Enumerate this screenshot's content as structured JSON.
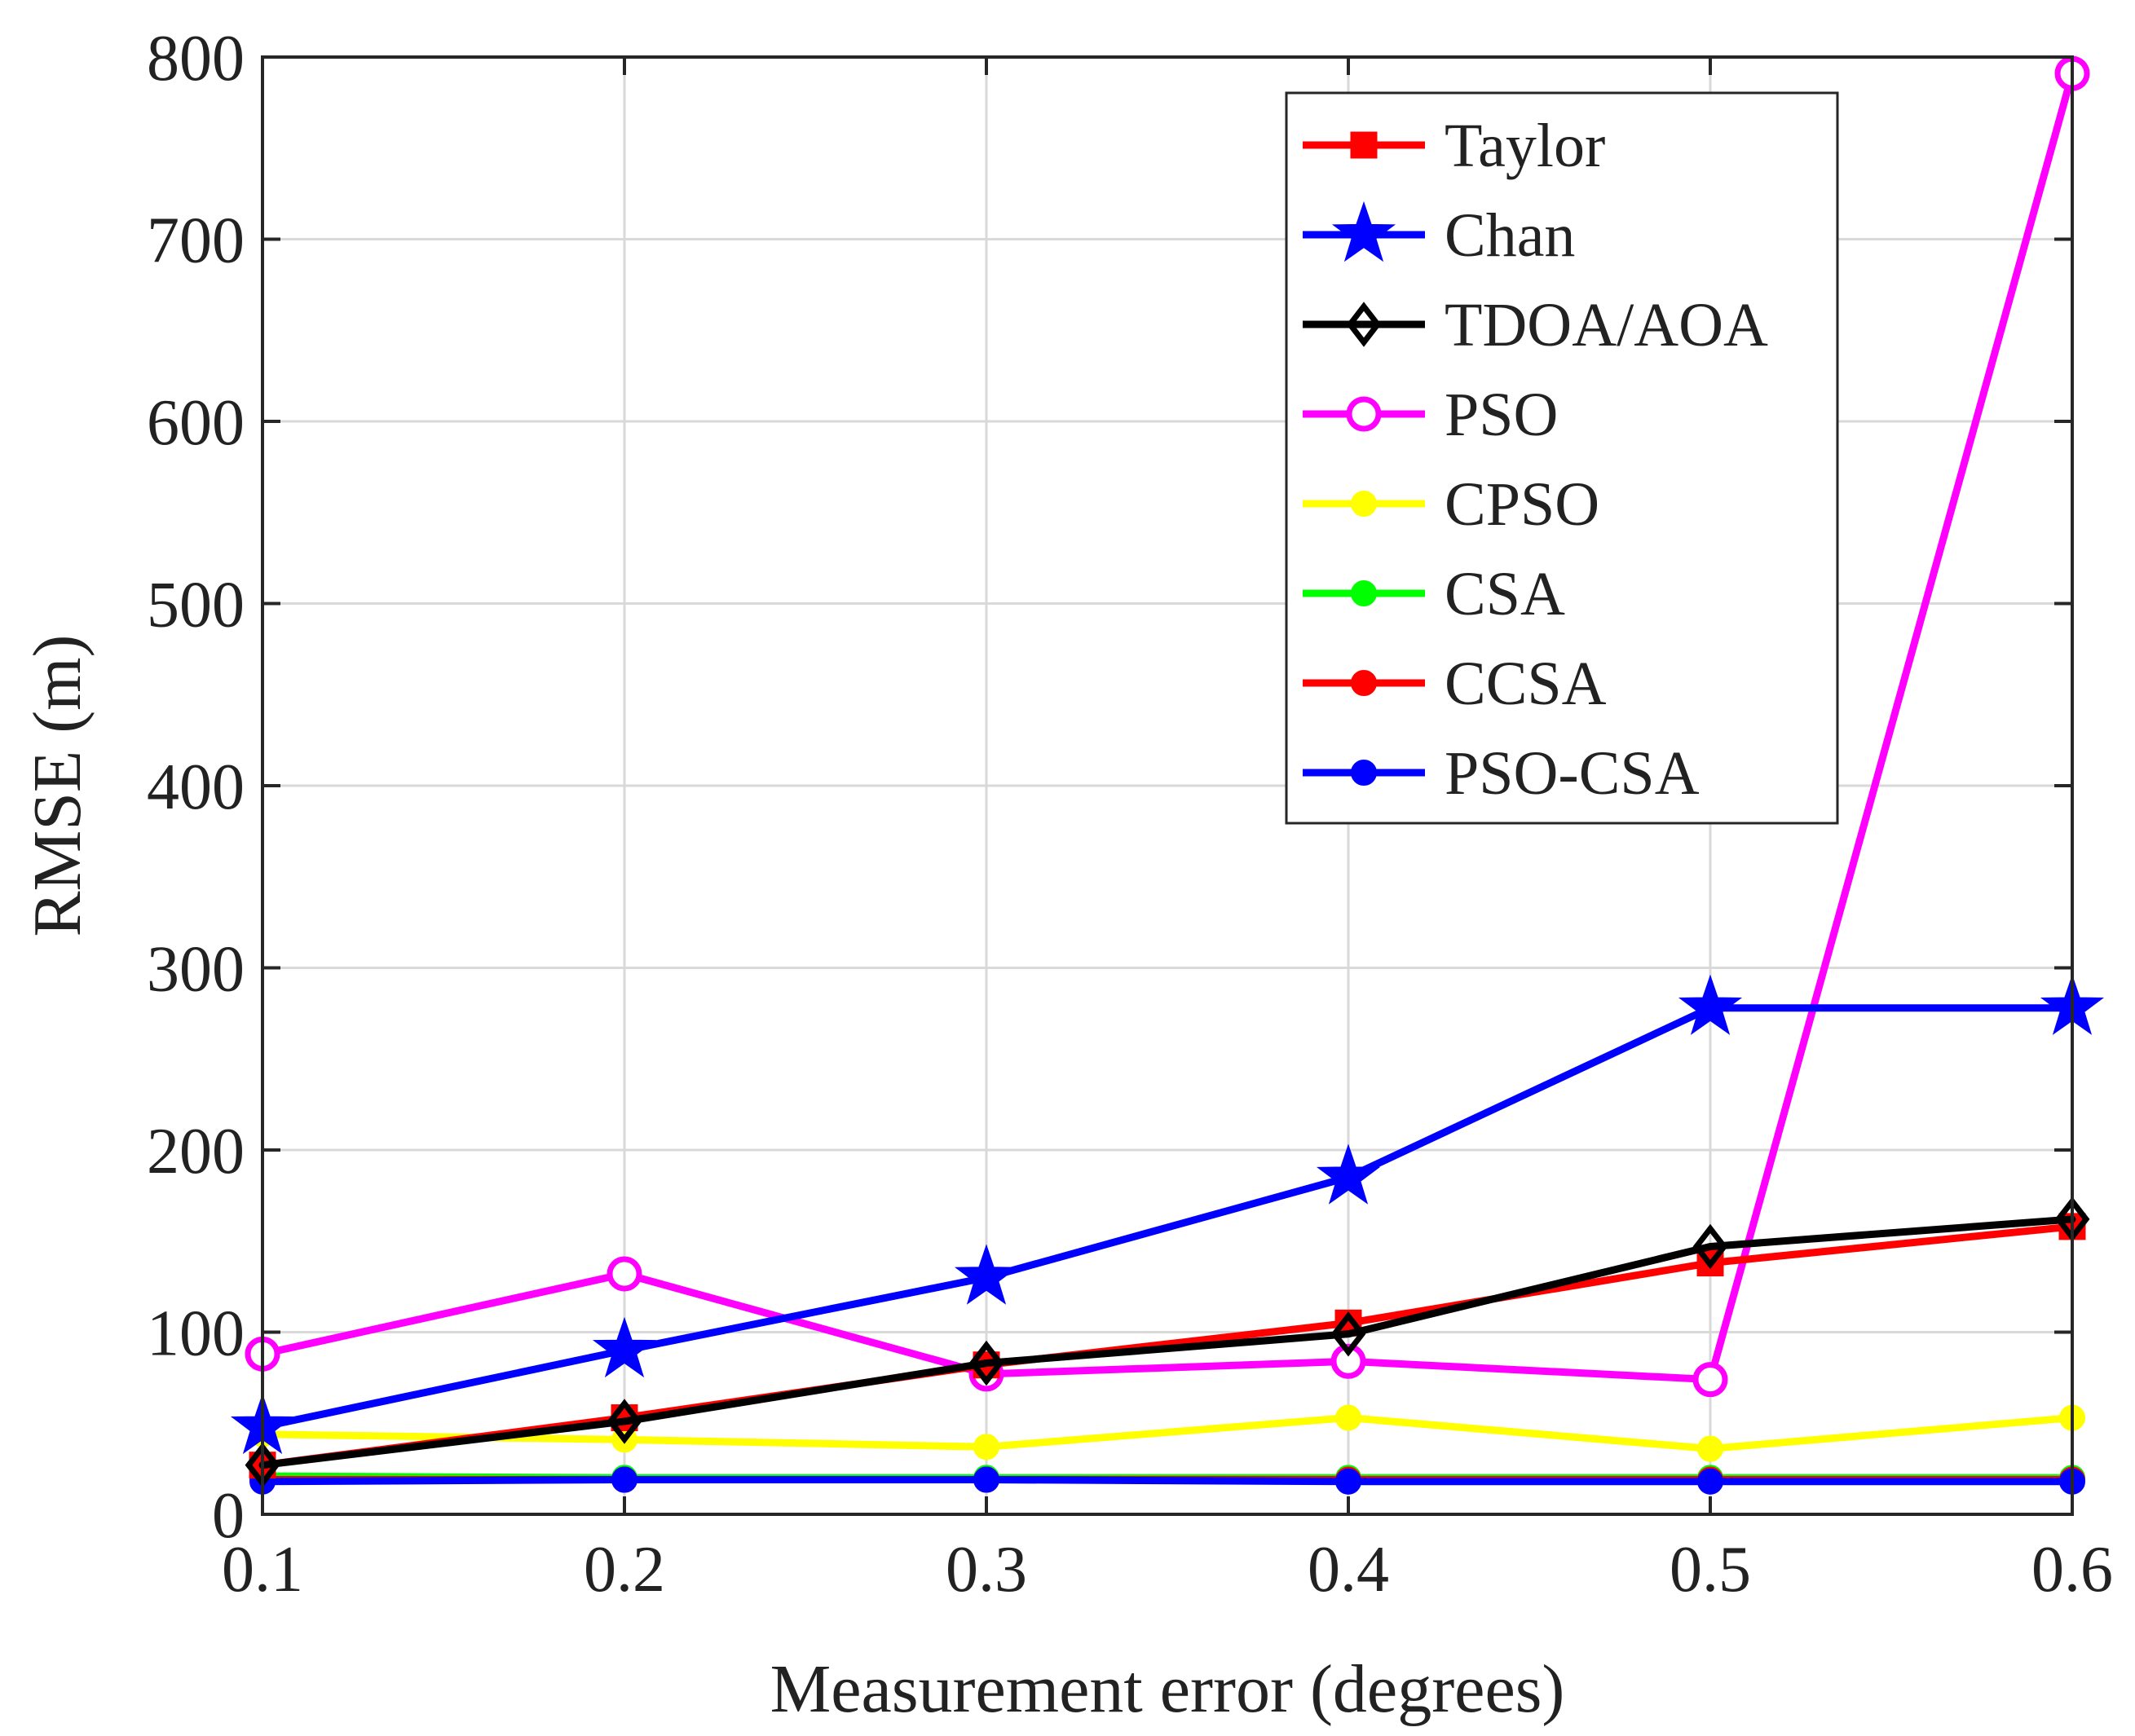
{
  "chart_data": {
    "type": "line",
    "title": "",
    "xlabel": "Measurement error (degrees)",
    "ylabel": "RMSE (m)",
    "x": [
      0.1,
      0.2,
      0.3,
      0.4,
      0.5,
      0.6
    ],
    "x_tick_labels": [
      "0.1",
      "0.2",
      "0.3",
      "0.4",
      "0.5",
      "0.6"
    ],
    "xlim": [
      0.1,
      0.6
    ],
    "ylim": [
      0,
      800
    ],
    "y_ticks": [
      0,
      100,
      200,
      300,
      400,
      500,
      600,
      700,
      800
    ],
    "y_tick_labels": [
      "0",
      "100",
      "200",
      "300",
      "400",
      "500",
      "600",
      "700",
      "800"
    ],
    "grid": true,
    "legend_position": "top-right",
    "series": [
      {
        "name": "Taylor",
        "color": "#ff0000",
        "marker": "square",
        "values": [
          27,
          53,
          82,
          105,
          138,
          158
        ]
      },
      {
        "name": "Chan",
        "color": "#0000ff",
        "marker": "star",
        "values": [
          48,
          90,
          130,
          185,
          278,
          278
        ]
      },
      {
        "name": "TDOA/AOA",
        "color": "#000000",
        "marker": "diamond",
        "values": [
          27,
          51,
          83,
          99,
          147,
          162
        ]
      },
      {
        "name": "PSO",
        "color": "#ff00ff",
        "marker": "circle-open",
        "values": [
          88,
          132,
          77,
          84,
          74,
          791
        ]
      },
      {
        "name": "CPSO",
        "color": "#ffff00",
        "marker": "circle-filled",
        "values": [
          44,
          41,
          37,
          53,
          36,
          53
        ]
      },
      {
        "name": "CSA",
        "color": "#00ff00",
        "marker": "circle-filled",
        "values": [
          21,
          20,
          20,
          20,
          20,
          20
        ]
      },
      {
        "name": "CCSA",
        "color": "#ff0000",
        "marker": "circle-filled",
        "values": [
          19,
          19,
          19,
          19,
          19,
          19
        ]
      },
      {
        "name": "PSO-CSA",
        "color": "#0000ff",
        "marker": "circle-filled",
        "values": [
          18,
          19,
          19,
          18,
          18,
          18
        ]
      }
    ]
  }
}
